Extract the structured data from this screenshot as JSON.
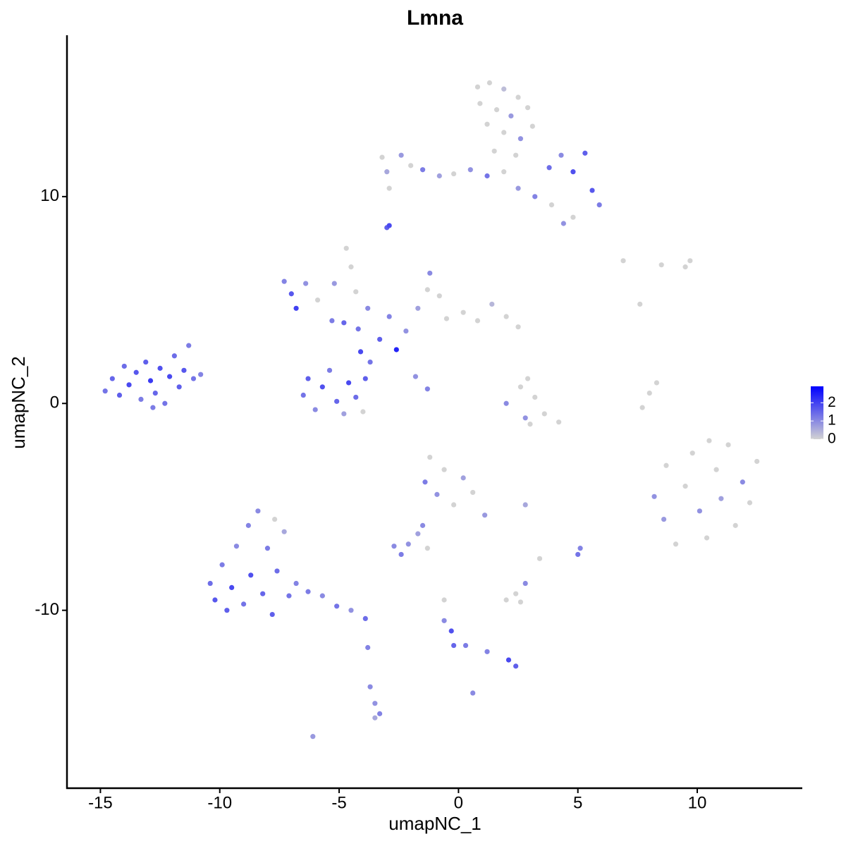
{
  "chart_data": {
    "type": "scatter",
    "title": "Lmna",
    "x_label": "umapNC_1",
    "y_label": "umapNC_2",
    "xlim": [
      -16.4,
      14.4
    ],
    "ylim": [
      -18.6,
      17.8
    ],
    "xticks": [
      -15,
      -10,
      -5,
      0,
      5,
      10
    ],
    "yticks": [
      -10,
      0,
      10
    ],
    "colorbar": {
      "lim": [
        0,
        2.9
      ],
      "ticks": [
        0,
        1,
        2
      ],
      "colors": [
        "#d3d3d3",
        "#0000ff"
      ]
    },
    "x": [
      -14.8,
      -14.5,
      -14.2,
      -14.0,
      -13.8,
      -13.5,
      -13.3,
      -13.1,
      -12.9,
      -12.7,
      -12.5,
      -12.3,
      -12.1,
      -11.9,
      -11.7,
      -11.5,
      -11.3,
      -11.1,
      -10.8,
      -12.8,
      0.8,
      1.3,
      1.9,
      2.5,
      0.9,
      1.6,
      2.2,
      2.9,
      1.2,
      1.9,
      2.6,
      3.1,
      1.5,
      2.4,
      -3.2,
      -3.0,
      -2.9,
      -2.4,
      -2.0,
      -1.5,
      -0.8,
      -0.2,
      0.5,
      1.2,
      1.9,
      2.5,
      3.2,
      3.8,
      4.3,
      4.8,
      5.3,
      5.6,
      5.9,
      4.8,
      4.4,
      3.9,
      -7.3,
      -7.0,
      -6.8,
      -6.4,
      -5.9,
      -5.2,
      -5.3,
      -4.8,
      -4.2,
      -4.7,
      -4.5,
      -4.3,
      -3.8,
      -3.3,
      -2.6,
      -2.9,
      -2.2,
      -1.7,
      -1.3,
      -1.2,
      -0.8,
      -0.5,
      0.2,
      0.8,
      1.4,
      2.0,
      2.5,
      -1.8,
      -1.3,
      -4.1,
      -6.5,
      -6.3,
      -6.0,
      -5.7,
      -5.4,
      -5.1,
      -4.8,
      -4.6,
      -4.3,
      -3.9,
      -3.7,
      -4.0,
      2.0,
      2.6,
      2.9,
      3.2,
      3.6,
      4.2,
      2.8,
      3.0,
      8.2,
      8.6,
      8.7,
      9.1,
      9.5,
      9.8,
      10.1,
      10.4,
      10.8,
      11.0,
      11.3,
      11.6,
      11.9,
      12.2,
      12.5,
      10.5,
      -10.4,
      -10.2,
      -9.9,
      -9.7,
      -9.5,
      -9.3,
      -9.0,
      -8.8,
      -8.7,
      -8.4,
      -8.2,
      -8.0,
      -7.8,
      -7.6,
      -7.3,
      -7.1,
      -6.8,
      -6.3,
      -5.7,
      -5.1,
      -4.5,
      -3.9,
      -7.7,
      -1.2,
      -1.4,
      -0.9,
      -0.6,
      -0.2,
      0.2,
      0.6,
      1.1,
      -1.5,
      -1.7,
      -2.7,
      -2.4,
      -2.1,
      -1.3,
      2.0,
      2.4,
      2.8,
      2.6,
      3.4,
      5.0,
      5.1,
      -0.6,
      -0.6,
      -0.3,
      -0.2,
      0.3,
      1.2,
      2.1,
      2.4,
      0.6,
      -3.8,
      -3.7,
      -3.5,
      -3.3,
      -3.5,
      -6.1,
      -2.9,
      -3.0,
      7.7,
      8.0,
      8.3,
      6.9,
      9.7,
      9.5,
      8.5,
      7.6,
      2.8
    ],
    "y": [
      0.6,
      1.2,
      0.4,
      1.8,
      0.9,
      1.5,
      0.2,
      2.0,
      1.1,
      0.5,
      1.7,
      0,
      1.3,
      2.3,
      0.8,
      1.6,
      2.8,
      1.2,
      1.4,
      -0.2,
      15.3,
      15.5,
      15.2,
      14.8,
      14.5,
      14.2,
      13.9,
      14.3,
      13.5,
      13.1,
      12.8,
      13.4,
      12.2,
      12.0,
      11.9,
      11.2,
      10.4,
      12.0,
      11.5,
      11.3,
      11.0,
      11.1,
      11.3,
      11.0,
      11.2,
      10.4,
      10.0,
      11.4,
      12.0,
      11.2,
      12.1,
      10.3,
      9.6,
      9.0,
      8.7,
      9.6,
      5.9,
      5.3,
      4.6,
      5.8,
      5.0,
      5.8,
      4.0,
      3.9,
      3.6,
      7.5,
      6.6,
      5.4,
      4.6,
      3.1,
      2.6,
      4.2,
      3.5,
      4.6,
      5.5,
      6.3,
      5.2,
      4.1,
      4.4,
      4.0,
      4.8,
      4.2,
      3.7,
      1.3,
      0.7,
      2.5,
      0.4,
      1.2,
      -0.3,
      0.8,
      1.6,
      0.1,
      -0.5,
      1.0,
      0.3,
      1.2,
      2.0,
      -0.4,
      0,
      0.8,
      1.2,
      0.3,
      -0.5,
      -0.9,
      -0.7,
      -1.0,
      -4.5,
      -5.6,
      -3.0,
      -6.8,
      -4.0,
      -2.4,
      -5.2,
      -6.5,
      -3.2,
      -4.6,
      -2.0,
      -5.9,
      -3.8,
      -4.8,
      -2.8,
      -1.8,
      -8.7,
      -9.5,
      -7.8,
      -10.0,
      -8.9,
      -6.9,
      -9.7,
      -5.9,
      -8.3,
      -5.2,
      -9.2,
      -7.0,
      -10.2,
      -8.1,
      -6.2,
      -9.3,
      -8.7,
      -9.1,
      -9.3,
      -9.8,
      -10.0,
      -10.4,
      -5.6,
      -2.6,
      -3.8,
      -4.4,
      -3.2,
      -4.9,
      -3.6,
      -4.3,
      -5.4,
      -5.9,
      -6.3,
      -6.9,
      -7.3,
      -6.8,
      -7.0,
      -9.5,
      -9.2,
      -8.7,
      -9.6,
      -7.5,
      -7.3,
      -7.0,
      -9.5,
      -10.5,
      -11.0,
      -11.7,
      -11.7,
      -12.0,
      -12.4,
      -12.7,
      -14.0,
      -11.8,
      -13.7,
      -14.5,
      -15.0,
      -15.2,
      -16.1,
      8.6,
      8.5,
      -0.2,
      0.5,
      1.0,
      6.9,
      6.9,
      6.6,
      6.7,
      4.8,
      -4.9
    ],
    "values": [
      1.3,
      1.5,
      1.6,
      1.4,
      1.9,
      1.7,
      1.2,
      1.6,
      2.1,
      1.5,
      1.8,
      1.3,
      1.9,
      1.4,
      1.6,
      1.7,
      1.2,
      1.3,
      1.1,
      1.2,
      0,
      0,
      0.3,
      0,
      0,
      0,
      0.8,
      0,
      0,
      0,
      0.9,
      0,
      0,
      0,
      0,
      0.6,
      0,
      0.8,
      0,
      1.2,
      0.7,
      0,
      0.9,
      1.3,
      0,
      0.8,
      1.1,
      1.4,
      1.0,
      1.8,
      1.6,
      1.7,
      1.2,
      0,
      0.9,
      0,
      1.1,
      1.7,
      2.0,
      0.9,
      0,
      0.8,
      1.2,
      1.5,
      1.3,
      0,
      0,
      0,
      1.0,
      1.6,
      2.4,
      1.1,
      0.9,
      0.7,
      0,
      1.0,
      0,
      0,
      0,
      0,
      0.4,
      0,
      0,
      0.9,
      1.1,
      1.9,
      1.3,
      1.6,
      1.0,
      1.8,
      1.2,
      1.5,
      0.7,
      1.9,
      1.4,
      1.6,
      1.3,
      0,
      1.0,
      0,
      0,
      0,
      0,
      0,
      0.9,
      0,
      0.9,
      0.8,
      0,
      0,
      0,
      0,
      0.9,
      0,
      0,
      0.7,
      0,
      0,
      1.0,
      0,
      0,
      0,
      1.4,
      1.7,
      1.2,
      1.6,
      1.9,
      1.0,
      1.3,
      1.1,
      1.8,
      1.0,
      1.5,
      1.2,
      1.6,
      1.4,
      0.6,
      1.3,
      1.1,
      1.2,
      1.0,
      1.3,
      0.9,
      1.4,
      0,
      0,
      1.2,
      0.9,
      0,
      0,
      0.7,
      0,
      0.8,
      1.0,
      0.7,
      1.0,
      1.2,
      0.9,
      0,
      0,
      0,
      1.0,
      0,
      0,
      1.3,
      1.1,
      0,
      1.0,
      1.8,
      1.5,
      1.2,
      1.1,
      1.9,
      1.6,
      1.0,
      1.1,
      1.0,
      0.9,
      1.1,
      0.6,
      0.8,
      1.9,
      1.6,
      0,
      0,
      0,
      0,
      0,
      0,
      0,
      0,
      0.6
    ]
  }
}
